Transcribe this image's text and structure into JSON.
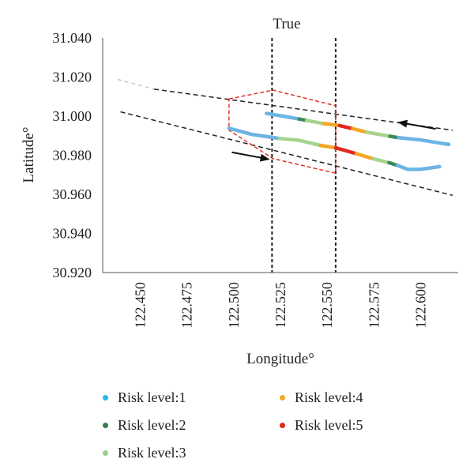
{
  "chart_data": {
    "type": "line",
    "title": "True",
    "xlabel": "Longitude°",
    "ylabel": "Latitude°",
    "xlim": [
      122.43,
      122.62
    ],
    "ylim": [
      30.92,
      31.04
    ],
    "x_ticks": [
      "122.450",
      "122.475",
      "122.500",
      "122.525",
      "122.550",
      "122.575",
      "122.600"
    ],
    "x_tick_values": [
      122.45,
      122.475,
      122.5,
      122.525,
      122.55,
      122.575,
      122.6
    ],
    "y_ticks": [
      "30.920",
      "30.940",
      "30.960",
      "30.980",
      "31.000",
      "31.020",
      "31.040"
    ],
    "y_tick_values": [
      30.92,
      30.94,
      30.96,
      30.98,
      31.0,
      31.02,
      31.04
    ],
    "grid": false,
    "legend_position": "bottom",
    "legend": [
      {
        "label": "Risk level:1",
        "level": 1,
        "color": "#29b6e8"
      },
      {
        "label": "Risk level:2",
        "level": 2,
        "color": "#2e7d4f"
      },
      {
        "label": "Risk level:3",
        "level": 3,
        "color": "#9ccf86"
      },
      {
        "label": "Risk level:4",
        "level": 4,
        "color": "#f5a623"
      },
      {
        "label": "Risk level:5",
        "level": 5,
        "color": "#e0281e"
      }
    ],
    "level_colors": {
      "1": "#6cb4e4",
      "2": "#3c8a5a",
      "3": "#a6d48e",
      "4": "#f5a623",
      "5": "#e0281e"
    },
    "tracks": [
      {
        "direction": "westbound",
        "segments": [
          {
            "level": 1,
            "x": [
              122.5175,
              122.5275,
              122.535
            ],
            "y": [
              31.0014,
              30.9998,
              30.9985
            ]
          },
          {
            "level": 2,
            "x": [
              122.535,
              122.539
            ],
            "y": [
              30.9985,
              30.9978
            ]
          },
          {
            "level": 3,
            "x": [
              122.539,
              122.548
            ],
            "y": [
              30.9978,
              30.9962
            ]
          },
          {
            "level": 4,
            "x": [
              122.548,
              122.5565
            ],
            "y": [
              30.9962,
              30.9952
            ]
          },
          {
            "level": 5,
            "x": [
              122.5565,
              122.5635
            ],
            "y": [
              30.9952,
              30.9936
            ]
          },
          {
            "level": 4,
            "x": [
              122.5635,
              122.571
            ],
            "y": [
              30.9936,
              30.9918
            ]
          },
          {
            "level": 3,
            "x": [
              122.571,
              122.5835
            ],
            "y": [
              30.9918,
              30.9897
            ]
          },
          {
            "level": 2,
            "x": [
              122.5835,
              122.588
            ],
            "y": [
              30.9897,
              30.989
            ]
          },
          {
            "level": 1,
            "x": [
              122.588,
              122.6,
              122.615
            ],
            "y": [
              30.989,
              30.9878,
              30.9855
            ]
          }
        ]
      },
      {
        "direction": "eastbound",
        "segments": [
          {
            "level": 1,
            "x": [
              122.4975,
              122.51,
              122.5245
            ],
            "y": [
              30.9938,
              30.9906,
              30.9886
            ]
          },
          {
            "level": 3,
            "x": [
              122.5245,
              122.535,
              122.5465
            ],
            "y": [
              30.9886,
              30.9876,
              30.985
            ]
          },
          {
            "level": 4,
            "x": [
              122.5465,
              122.5545
            ],
            "y": [
              30.985,
              30.9838
            ]
          },
          {
            "level": 5,
            "x": [
              122.5545,
              122.5655
            ],
            "y": [
              30.9838,
              30.9808
            ]
          },
          {
            "level": 4,
            "x": [
              122.5655,
              122.5745
            ],
            "y": [
              30.9808,
              30.9782
            ]
          },
          {
            "level": 3,
            "x": [
              122.5745,
              122.583
            ],
            "y": [
              30.9782,
              30.9762
            ]
          },
          {
            "level": 2,
            "x": [
              122.583,
              122.5875
            ],
            "y": [
              30.9762,
              30.9748
            ]
          },
          {
            "level": 1,
            "x": [
              122.5875,
              122.593,
              122.6,
              122.61
            ],
            "y": [
              30.9748,
              30.9728,
              30.9728,
              30.9742
            ]
          }
        ]
      }
    ],
    "channel_lines": [
      {
        "style": "dashed",
        "color": "#222222",
        "x": [
          122.4575,
          122.617
        ],
        "y": [
          31.0138,
          30.9928
        ]
      },
      {
        "style": "dashed",
        "color": "#222222",
        "x": [
          122.4395,
          122.617
        ],
        "y": [
          31.0022,
          30.9595
        ]
      }
    ],
    "channel_fade": [
      {
        "color": "#c8c8c8",
        "x": [
          122.438,
          122.4575
        ],
        "y": [
          31.0188,
          31.0138
        ]
      }
    ],
    "vertical_lines": [
      {
        "style": "dashed",
        "color": "#222222",
        "x": 122.5205
      },
      {
        "style": "dashed",
        "color": "#222222",
        "x": 122.5545
      }
    ],
    "region_polygon": {
      "style": "dashed",
      "color": "#e0281e",
      "x": [
        122.4975,
        122.521,
        122.5545,
        122.5545,
        122.521,
        122.4975
      ],
      "y": [
        31.0088,
        31.0133,
        31.0053,
        30.9708,
        30.9783,
        30.9928
      ]
    },
    "arrows": [
      {
        "direction": "westbound",
        "from": [
          122.608,
          30.9935
        ],
        "to": [
          122.5885,
          30.9968
        ]
      },
      {
        "direction": "eastbound",
        "from": [
          122.499,
          30.9815
        ],
        "to": [
          122.5185,
          30.978
        ]
      }
    ]
  }
}
